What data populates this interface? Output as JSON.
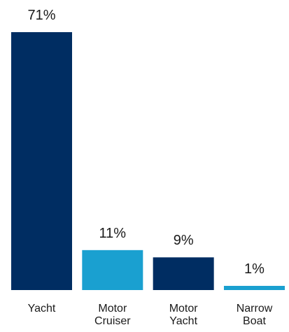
{
  "chart_data": {
    "type": "bar",
    "categories": [
      [
        "Yacht"
      ],
      [
        "Motor",
        "Cruiser"
      ],
      [
        "Motor",
        "Yacht"
      ],
      [
        "Narrow",
        "Boat"
      ]
    ],
    "values": [
      71,
      11,
      9,
      1
    ],
    "value_labels": [
      "71%",
      "11%",
      "9%",
      "1%"
    ],
    "ylim": [
      0,
      71
    ],
    "grid": false,
    "legend": "none",
    "colors": [
      "#002d62",
      "#1aa0d0",
      "#002d62",
      "#1aa0d0"
    ]
  }
}
